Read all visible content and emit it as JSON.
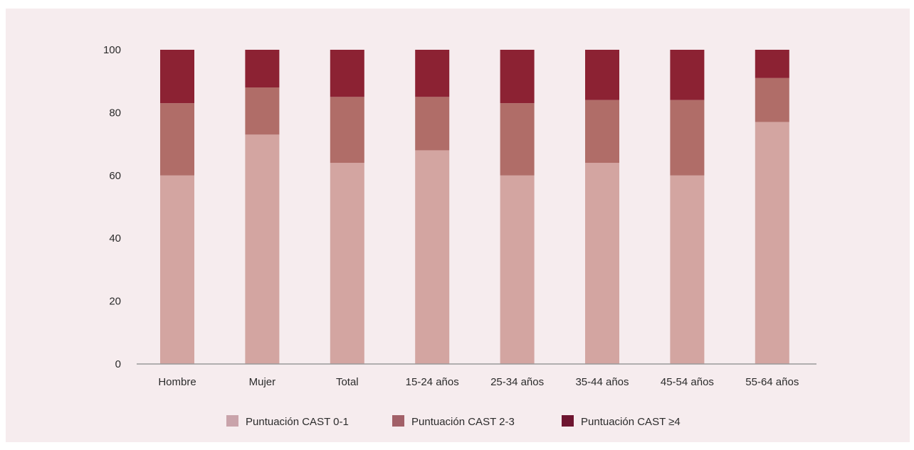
{
  "chart_data": {
    "type": "bar",
    "stacked": true,
    "title": "",
    "xlabel": "",
    "ylabel": "",
    "ylim": [
      0,
      100
    ],
    "yticks": [
      0,
      20,
      40,
      60,
      80,
      100
    ],
    "ytick_labels": [
      "0",
      "20",
      "40",
      "60",
      "80",
      "100"
    ],
    "grid": false,
    "legend_position": "bottom",
    "categories": [
      "Hombre",
      "Mujer",
      "Total",
      "15-24 años",
      "25-34 años",
      "35-44 años",
      "45-54 años",
      "55-64 años"
    ],
    "series": [
      {
        "name": "Puntuación CAST 0-1",
        "color": "#d3a5a1",
        "values": [
          60,
          73,
          64,
          68,
          60,
          64,
          60,
          77
        ]
      },
      {
        "name": "Puntuación CAST 2-3",
        "color": "#b06d68",
        "values": [
          23,
          15,
          21,
          17,
          23,
          20,
          24,
          14
        ]
      },
      {
        "name": "Puntuación CAST ≥4",
        "color": "#8c2233",
        "values": [
          17,
          12,
          15,
          15,
          17,
          16,
          16,
          9
        ]
      }
    ],
    "legend_swatch_colors": [
      "#c9a3aa",
      "#a26068",
      "#6e1530"
    ]
  }
}
